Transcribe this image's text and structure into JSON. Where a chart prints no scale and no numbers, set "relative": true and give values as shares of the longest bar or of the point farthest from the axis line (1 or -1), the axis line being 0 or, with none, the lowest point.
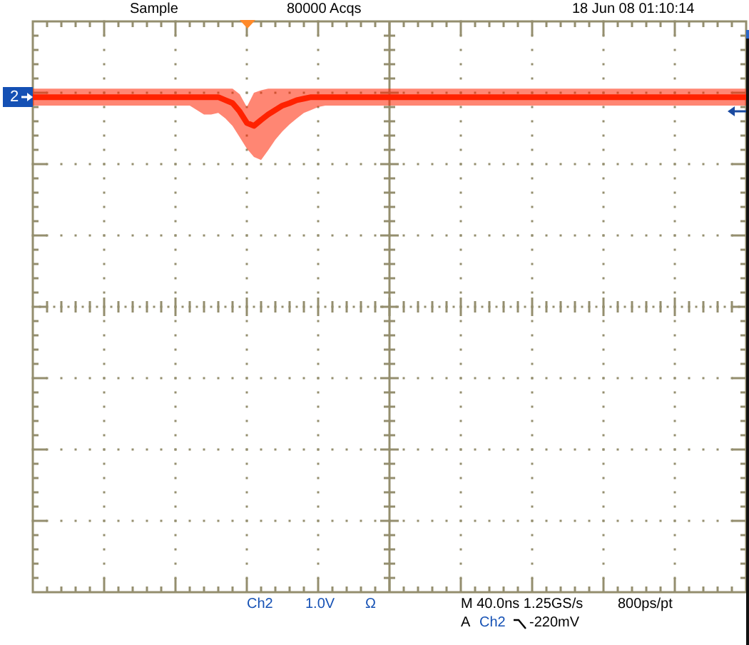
{
  "chart_data": {
    "type": "line",
    "relative": true,
    "grid": true,
    "tick_labels": false,
    "categories": [
      null,
      null,
      null,
      null,
      null,
      null,
      null,
      null,
      null,
      null,
      null,
      null,
      null,
      null,
      null,
      null,
      null,
      null,
      null,
      null,
      null,
      null,
      null,
      null,
      null,
      null,
      null,
      null,
      null,
      null,
      null,
      null,
      null,
      null,
      null,
      null,
      null,
      null,
      null,
      null,
      null,
      null,
      null,
      null,
      null,
      null,
      null,
      null,
      null,
      null,
      null,
      null,
      null,
      null,
      null,
      null,
      null,
      null,
      null,
      null,
      null,
      null,
      null,
      null,
      null,
      null,
      null,
      null,
      null,
      null,
      null,
      null,
      null,
      null,
      null,
      null,
      null,
      null,
      null,
      null,
      null,
      null,
      null,
      null,
      null,
      null,
      null,
      null,
      null,
      null,
      null,
      null,
      null,
      null,
      null,
      null,
      null,
      null,
      null,
      null,
      null
    ],
    "series": [
      {
        "color": "#ff2200",
        "values": [
          1,
          1,
          1,
          1,
          1,
          1,
          1,
          1,
          1,
          1,
          1,
          1,
          1,
          1,
          1,
          1,
          1,
          1,
          1,
          1,
          1,
          1,
          1,
          1,
          1,
          1,
          1,
          0.994,
          0.988,
          0.971,
          0.948,
          0.942,
          0.954,
          0.965,
          0.974,
          0.983,
          0.988,
          0.994,
          0.997,
          1,
          1,
          1,
          1,
          1,
          1,
          1,
          1,
          1,
          1,
          1,
          1,
          1,
          1,
          1,
          1,
          1,
          1,
          1,
          1,
          1,
          1,
          1,
          1,
          1,
          1,
          1,
          1,
          1,
          1,
          1,
          1,
          1,
          1,
          1,
          1,
          1,
          1,
          1,
          1,
          1,
          1,
          1,
          1,
          1,
          1,
          1,
          1,
          1,
          1,
          1,
          1,
          1,
          1,
          1,
          1,
          1,
          1,
          1,
          1,
          1,
          1
        ],
        "upper": [
          1.017,
          1.017,
          1.017,
          1.017,
          1.017,
          1.017,
          1.017,
          1.017,
          1.017,
          1.017,
          1.017,
          1.017,
          1.017,
          1.017,
          1.017,
          1.017,
          1.017,
          1.017,
          1.017,
          1.017,
          1.017,
          1.017,
          1.017,
          1.017,
          1.017,
          1.017,
          1.017,
          1.017,
          1.017,
          1.006,
          0.98,
          1.009,
          1.014,
          1.017,
          1.017,
          1.017,
          1.017,
          1.017,
          1.017,
          1.017,
          1.017,
          1.017,
          1.017,
          1.017,
          1.017,
          1.017,
          1.017,
          1.017,
          1.017,
          1.017,
          1.017,
          1.017,
          1.017,
          1.017,
          1.017,
          1.017,
          1.017,
          1.017,
          1.017,
          1.017,
          1.017,
          1.017,
          1.017,
          1.017,
          1.017,
          1.017,
          1.017,
          1.017,
          1.017,
          1.017,
          1.017,
          1.017,
          1.017,
          1.017,
          1.017,
          1.017,
          1.017,
          1.017,
          1.017,
          1.017,
          1.017,
          1.017,
          1.017,
          1.017,
          1.017,
          1.017,
          1.017,
          1.017,
          1.017,
          1.017,
          1.017,
          1.017,
          1.017,
          1.017,
          1.017,
          1.017,
          1.017,
          1.017,
          1.017,
          1.017,
          1.017
        ],
        "lower": [
          0.983,
          0.983,
          0.983,
          0.983,
          0.983,
          0.983,
          0.983,
          0.983,
          0.983,
          0.983,
          0.983,
          0.983,
          0.983,
          0.983,
          0.983,
          0.983,
          0.983,
          0.983,
          0.983,
          0.983,
          0.983,
          0.983,
          0.983,
          0.974,
          0.965,
          0.965,
          0.968,
          0.957,
          0.942,
          0.919,
          0.896,
          0.879,
          0.873,
          0.893,
          0.914,
          0.931,
          0.945,
          0.957,
          0.968,
          0.974,
          0.98,
          0.983,
          0.983,
          0.983,
          0.983,
          0.983,
          0.983,
          0.983,
          0.983,
          0.983,
          0.983,
          0.983,
          0.983,
          0.983,
          0.983,
          0.983,
          0.983,
          0.983,
          0.983,
          0.983,
          0.983,
          0.983,
          0.983,
          0.983,
          0.983,
          0.983,
          0.983,
          0.983,
          0.983,
          0.983,
          0.983,
          0.983,
          0.983,
          0.983,
          0.983,
          0.983,
          0.983,
          0.983,
          0.983,
          0.983,
          0.983,
          0.983,
          0.983,
          0.983,
          0.983,
          0.983,
          0.983,
          0.983,
          0.983,
          0.983,
          0.983,
          0.983,
          0.983,
          0.983,
          0.983,
          0.983,
          0.983,
          0.983,
          0.983,
          0.983,
          0.983
        ]
      }
    ],
    "annotations": [
      "Sample",
      "80000 Acqs",
      "18 Jun 08 01:10:14",
      "2",
      "Ch2",
      "1.0V",
      "Ω",
      "M 40.0ns 1.25GS/s",
      "800ps/pt",
      "A",
      "Ch2",
      "-220mV"
    ]
  }
}
